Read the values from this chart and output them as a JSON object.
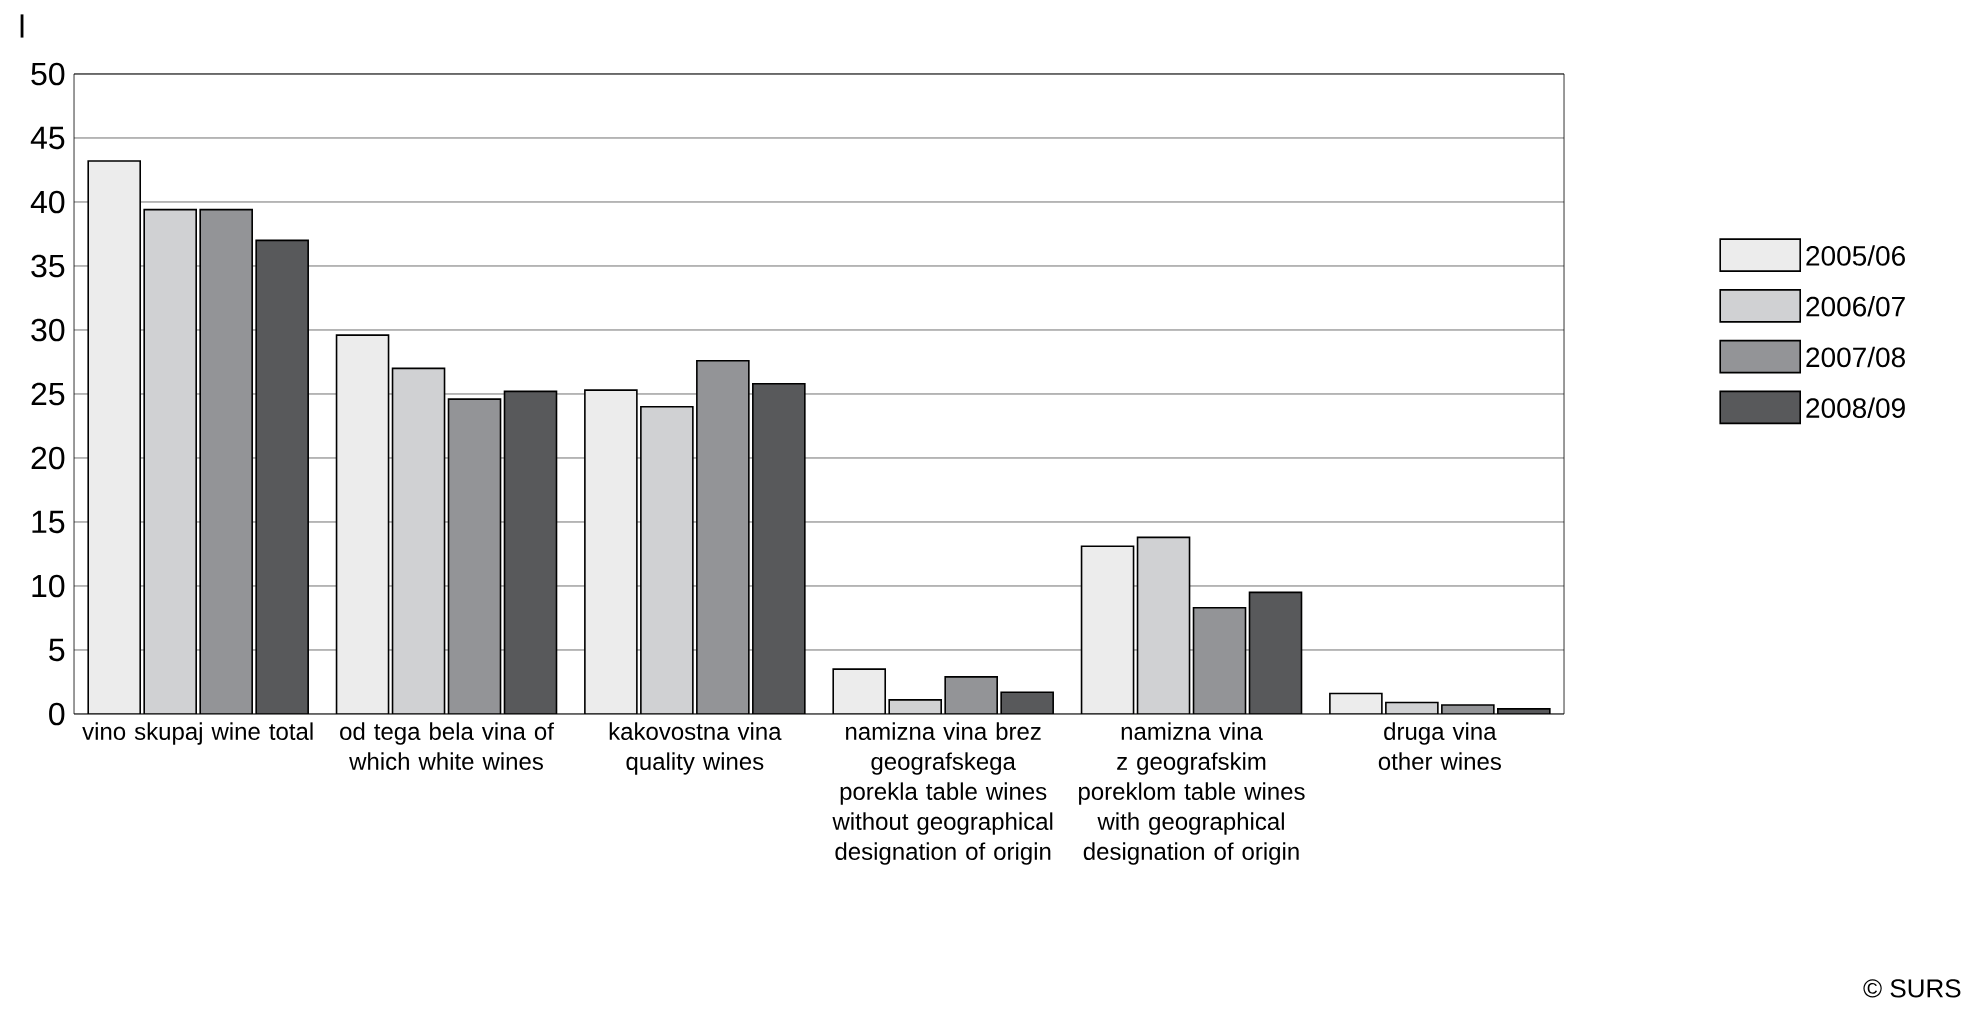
{
  "chart_data": {
    "type": "bar",
    "ylabel": "l",
    "categories": [
      "vino skupaj wine total",
      "od tega bela vina of which white wines",
      "kakovostna vina quality wines",
      "namizna vina brez geografskega porekla table wines without geographical designation of origin",
      "namizna vina z geografskim poreklom table wines with geographical designation of origin",
      "druga vina other wines"
    ],
    "series": [
      {
        "name": "2005/06",
        "color": "#ececec",
        "values": [
          43.2,
          29.6,
          25.3,
          3.5,
          13.1,
          1.6
        ]
      },
      {
        "name": "2006/07",
        "color": "#d0d1d3",
        "values": [
          39.4,
          27.0,
          24.0,
          1.1,
          13.8,
          0.9
        ]
      },
      {
        "name": "2007/08",
        "color": "#939497",
        "values": [
          39.4,
          24.6,
          27.6,
          2.9,
          8.3,
          0.7
        ]
      },
      {
        "name": "2008/09",
        "color": "#58595b",
        "values": [
          37.0,
          25.2,
          25.8,
          1.7,
          9.5,
          0.4
        ]
      }
    ],
    "ylim": [
      0,
      50
    ],
    "yticks": [
      0,
      5,
      10,
      15,
      20,
      25,
      30,
      35,
      40,
      45,
      50
    ],
    "grid": "y",
    "legend": "right",
    "annotations": [
      "© SURS"
    ]
  }
}
